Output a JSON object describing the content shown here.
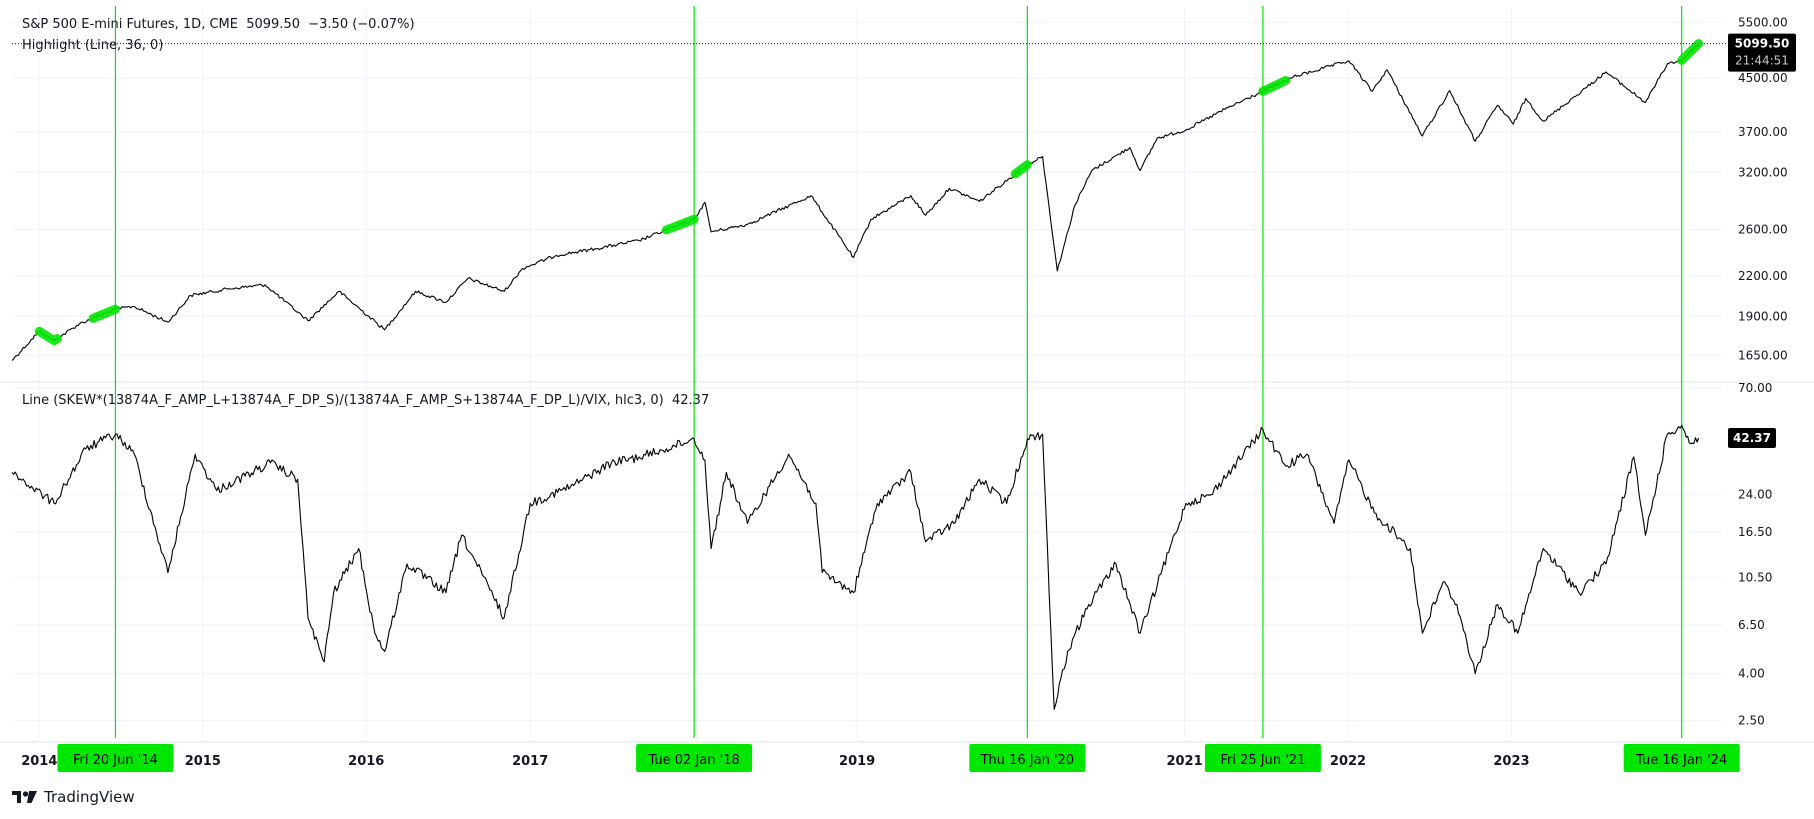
{
  "header": {
    "title_line": "S&P 500 E-mini Futures, 1D, CME  5099.50  −3.50 (−0.07%)",
    "highlight_line": "Highlight (Line, 36, 0)",
    "indicator_line": "Line (SKEW*(13874A_F_AMP_L+13874A_F_DP_S)/(13874A_F_AMP_S+13874A_F_DP_L)/VIX, hlc3, 0)  42.37"
  },
  "branding": {
    "text": "TradingView",
    "icon": "tradingview-logo-icon"
  },
  "colors": {
    "line": "#000000",
    "highlight": "#00e600",
    "grid": "#f0f3fa",
    "badge_bg": "#000000",
    "badge_text": "#ffffff"
  },
  "chart_data": [
    {
      "type": "line",
      "title": "S&P 500 E-mini Futures, 1D, CME",
      "yscale": "log",
      "ylim": [
        1520,
        5800
      ],
      "yticks": [
        "5500.00",
        "4500.00",
        "3700.00",
        "3200.00",
        "2600.00",
        "2200.00",
        "1900.00",
        "1650.00"
      ],
      "last_value_label": "5099.50",
      "countdown_label": "21:44:51",
      "series": [
        {
          "x": [
            "2013-11-01",
            "2014-01-01",
            "2014-02-03",
            "2014-04-01",
            "2014-06-20",
            "2014-07-31",
            "2014-10-15",
            "2014-12-05",
            "2015-03-01",
            "2015-05-20",
            "2015-08-24",
            "2015-11-01",
            "2016-02-11",
            "2016-04-20",
            "2016-06-27",
            "2016-08-15",
            "2016-11-04",
            "2016-12-15",
            "2017-03-01",
            "2017-06-01",
            "2017-09-01",
            "2018-01-02",
            "2018-01-26",
            "2018-02-09",
            "2018-05-01",
            "2018-09-20",
            "2018-12-24",
            "2019-02-01",
            "2019-05-01",
            "2019-06-03",
            "2019-07-26",
            "2019-10-01",
            "2020-01-16",
            "2020-02-19",
            "2020-03-23",
            "2020-05-01",
            "2020-06-08",
            "2020-09-01",
            "2020-09-24",
            "2020-11-01",
            "2021-01-04",
            "2021-04-01",
            "2021-06-25",
            "2021-09-01",
            "2022-01-03",
            "2022-02-24",
            "2022-03-29",
            "2022-06-16",
            "2022-08-16",
            "2022-10-12",
            "2022-12-01",
            "2023-01-05",
            "2023-02-02",
            "2023-03-13",
            "2023-07-31",
            "2023-10-27",
            "2023-12-15",
            "2024-01-16",
            "2024-02-23"
          ],
          "values": [
            1620,
            1800,
            1740,
            1850,
            1950,
            1970,
            1860,
            2050,
            2100,
            2130,
            1870,
            2080,
            1810,
            2080,
            2000,
            2180,
            2080,
            2260,
            2370,
            2430,
            2500,
            2700,
            2870,
            2580,
            2650,
            2940,
            2350,
            2700,
            2940,
            2740,
            3020,
            2880,
            3290,
            3390,
            2240,
            2840,
            3220,
            3500,
            3220,
            3620,
            3730,
            4020,
            4290,
            4520,
            4790,
            4290,
            4640,
            3650,
            4300,
            3580,
            4080,
            3810,
            4180,
            3850,
            4600,
            4120,
            4740,
            4800,
            5099.5
          ]
        }
      ],
      "highlight_dates": [
        "2014-01-01",
        "2014-02-10",
        "2014-05-01",
        "2014-06-20",
        "2017-11-01",
        "2018-01-02",
        "2019-12-20",
        "2020-01-16",
        "2021-06-25",
        "2021-08-15",
        "2024-01-16",
        "2024-02-23"
      ]
    },
    {
      "type": "line",
      "title": "Line (SKEW*(13874A_F_AMP_L+13874A_F_DP_S)/(13874A_F_AMP_S+13874A_F_DP_L)/VIX, hlc3, 0)",
      "yscale": "log",
      "ylim": [
        2.1,
        72
      ],
      "yticks": [
        "70.00",
        "24.00",
        "16.50",
        "10.50",
        "6.50",
        "4.00",
        "2.50"
      ],
      "last_value_label": "42.37",
      "series": [
        {
          "x": [
            "2013-11-01",
            "2014-02-03",
            "2014-04-15",
            "2014-06-20",
            "2014-08-01",
            "2014-10-15",
            "2014-12-15",
            "2015-02-01",
            "2015-06-01",
            "2015-08-01",
            "2015-08-24",
            "2015-09-29",
            "2015-10-20",
            "2015-12-15",
            "2016-01-20",
            "2016-02-11",
            "2016-04-01",
            "2016-06-27",
            "2016-08-01",
            "2016-11-04",
            "2017-01-01",
            "2017-04-01",
            "2017-07-01",
            "2017-09-01",
            "2017-11-01",
            "2018-01-02",
            "2018-01-26",
            "2018-02-09",
            "2018-03-15",
            "2018-05-01",
            "2018-08-01",
            "2018-10-01",
            "2018-10-15",
            "2018-12-24",
            "2019-02-15",
            "2019-05-01",
            "2019-06-03",
            "2019-08-05",
            "2019-10-01",
            "2019-12-01",
            "2020-01-16",
            "2020-02-19",
            "2020-03-16",
            "2020-04-15",
            "2020-06-01",
            "2020-08-01",
            "2020-09-24",
            "2021-01-04",
            "2021-03-01",
            "2021-06-25",
            "2021-08-15",
            "2021-10-01",
            "2021-12-01",
            "2022-01-03",
            "2022-03-01",
            "2022-05-20",
            "2022-06-16",
            "2022-08-01",
            "2022-09-01",
            "2022-10-12",
            "2022-12-01",
            "2023-01-15",
            "2023-03-13",
            "2023-06-01",
            "2023-07-31",
            "2023-10-01",
            "2023-10-27",
            "2023-12-15",
            "2024-01-16",
            "2024-02-05",
            "2024-02-23"
          ],
          "values": [
            30,
            22,
            38,
            44,
            36,
            11,
            36,
            25,
            33,
            28,
            7,
            4.5,
            9,
            14,
            6,
            5,
            12,
            9,
            16,
            7,
            22,
            26,
            33,
            35,
            38,
            42,
            34,
            14,
            30,
            18,
            36,
            22,
            11,
            9,
            22,
            30,
            15,
            18,
            28,
            22,
            42,
            44,
            2.8,
            5,
            8,
            12,
            6,
            22,
            24,
            46,
            32,
            36,
            18,
            34,
            20,
            14,
            6,
            10,
            8,
            4,
            8,
            6,
            14,
            9,
            12,
            35,
            16,
            44,
            48,
            40,
            42.37
          ]
        }
      ]
    }
  ],
  "markers": [
    {
      "date": "2014-06-20",
      "label": "Fri 20 Jun '14"
    },
    {
      "date": "2018-01-02",
      "label": "Tue 02 Jan '18"
    },
    {
      "date": "2020-01-16",
      "label": "Thu 16 Jan '20"
    },
    {
      "date": "2021-06-25",
      "label": "Fri 25 Jun '21"
    },
    {
      "date": "2024-01-16",
      "label": "Tue 16 Jan '24"
    }
  ],
  "x_axis": {
    "range": [
      "2013-11-01",
      "2024-04-15"
    ],
    "ticks": [
      {
        "date": "2014-01-01",
        "label": "2014"
      },
      {
        "date": "2015-01-01",
        "label": "2015"
      },
      {
        "date": "2016-01-01",
        "label": "2016"
      },
      {
        "date": "2017-01-01",
        "label": "2017"
      },
      {
        "date": "2019-01-01",
        "label": "2019"
      },
      {
        "date": "2021-01-01",
        "label": "2021"
      },
      {
        "date": "2022-01-01",
        "label": "2022"
      },
      {
        "date": "2023-01-01",
        "label": "2023"
      }
    ]
  }
}
